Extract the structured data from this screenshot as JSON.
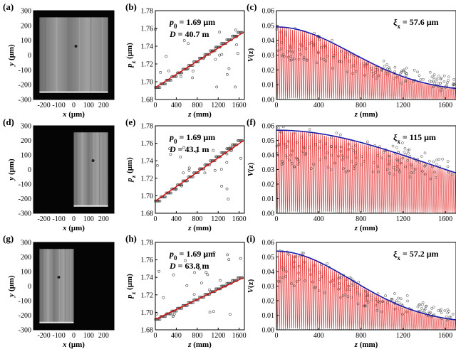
{
  "colors": {
    "fit_line": "#e00000",
    "envelope": "#1a1aa8",
    "data_marker": "#444444",
    "fringe": "#e02020"
  },
  "chart_data": [
    {
      "id": "a",
      "type": "heatmap",
      "panel_label": "(a)",
      "xlabel_var": "x",
      "xlabel_unit": " (μm)",
      "ylabel_var": "y",
      "ylabel_unit": " (μm)",
      "xlim": [
        -270,
        270
      ],
      "ylim": [
        -300,
        300
      ],
      "xticks": [
        "-200",
        "-100",
        "0",
        "100",
        "200"
      ],
      "yticks": [
        "300",
        "200",
        "100",
        "0",
        "-100",
        "-200",
        "-300"
      ],
      "bright_region": [
        -230,
        230
      ],
      "bright_y": [
        -250,
        255
      ]
    },
    {
      "id": "b",
      "type": "scatter",
      "panel_label": "(b)",
      "xlabel_var": "z",
      "xlabel_unit": " (mm)",
      "ylabel_var": "p",
      "ylabel_sub": "z",
      "ylabel_unit": " (μm)",
      "xlim": [
        0,
        1700
      ],
      "ylim": [
        1.68,
        1.78
      ],
      "xticks": [
        "0",
        "400",
        "800",
        "1200",
        "1600"
      ],
      "yticks": [
        "1.78",
        "1.76",
        "1.74",
        "1.72",
        "1.70",
        "1.68"
      ],
      "anno1_var": "p",
      "anno1_sub": "0",
      "anno1_rest": " = 1.69 μm",
      "anno2_var": "D",
      "anno2_rest": " = 40.7 m",
      "fit_line": {
        "x": [
          0,
          1680
        ],
        "y": [
          1.6935,
          1.7555
        ]
      },
      "data_y_range": [
        1.69,
        1.765
      ]
    },
    {
      "id": "c",
      "type": "line",
      "panel_label": "(c)",
      "xlabel_var": "z",
      "xlabel_unit": " (mm)",
      "ylabel_var": "V",
      "ylabel_unit": "(z)",
      "xlim": [
        0,
        1700
      ],
      "ylim": [
        0,
        0.06
      ],
      "xticks": [
        "0",
        "400",
        "800",
        "1200",
        "1600"
      ],
      "yticks": [
        "0.06",
        "0.05",
        "0.04",
        "0.03",
        "0.02",
        "0.01",
        "0.00"
      ],
      "anno_var": "ξ",
      "anno_sub": "x",
      "anno_rest": " = 57.6 μm",
      "envelope": {
        "peak": 0.049,
        "coherence_mm": 1000,
        "floor": 0.005
      }
    },
    {
      "id": "d",
      "type": "heatmap",
      "panel_label": "(d)",
      "xlabel_var": "x",
      "xlabel_unit": " (μm)",
      "ylabel_var": "y",
      "ylabel_unit": " (μm)",
      "xlim": [
        -270,
        270
      ],
      "ylim": [
        -300,
        300
      ],
      "xticks": [
        "-200",
        "-100",
        "0",
        "100",
        "200"
      ],
      "yticks": [
        "300",
        "200",
        "100",
        "0",
        "-100",
        "-200",
        "-300"
      ],
      "bright_region": [
        0,
        230
      ],
      "bright_y": [
        -250,
        255
      ]
    },
    {
      "id": "e",
      "type": "scatter",
      "panel_label": "(e)",
      "xlabel_var": "z",
      "xlabel_unit": " (mm)",
      "ylabel_var": "p",
      "ylabel_sub": "z",
      "ylabel_unit": " (μm)",
      "xlim": [
        0,
        1700
      ],
      "ylim": [
        1.68,
        1.78
      ],
      "xticks": [
        "0",
        "400",
        "800",
        "1200",
        "1600"
      ],
      "yticks": [
        "1.78",
        "1.76",
        "1.74",
        "1.72",
        "1.70",
        "1.68"
      ],
      "anno1_var": "p",
      "anno1_sub": "0",
      "anno1_rest": " = 1.69 μm",
      "anno2_var": "D",
      "anno2_rest": " = 43.1 m",
      "fit_line": {
        "x": [
          0,
          1680
        ],
        "y": [
          1.694,
          1.763
        ]
      },
      "data_y_range": [
        1.693,
        1.765
      ]
    },
    {
      "id": "f",
      "type": "line",
      "panel_label": "(f)",
      "xlabel_var": "z",
      "xlabel_unit": " (mm)",
      "ylabel_var": "V",
      "ylabel_unit": "(z)",
      "xlim": [
        0,
        1700
      ],
      "ylim": [
        0,
        0.06
      ],
      "xticks": [
        "0",
        "400",
        "800",
        "1200",
        "1600"
      ],
      "yticks": [
        "0.06",
        "0.05",
        "0.04",
        "0.03",
        "0.02",
        "0.01",
        "0.00"
      ],
      "anno_var": "ξ",
      "anno_sub": "x",
      "anno_rest": " = 115 μm",
      "envelope": {
        "peak": 0.057,
        "coherence_mm": 2000,
        "floor": 0.0
      }
    },
    {
      "id": "g",
      "type": "heatmap",
      "panel_label": "(g)",
      "xlabel_var": "x",
      "xlabel_unit": " (μm)",
      "ylabel_var": "y",
      "ylabel_unit": " (μm)",
      "xlim": [
        -270,
        270
      ],
      "ylim": [
        -300,
        300
      ],
      "xticks": [
        "-200",
        "-100",
        "0",
        "100",
        "200"
      ],
      "yticks": [
        "300",
        "200",
        "100",
        "0",
        "-100",
        "-200",
        "-300"
      ],
      "bright_region": [
        -230,
        0
      ],
      "bright_y": [
        -250,
        255
      ]
    },
    {
      "id": "h",
      "type": "scatter",
      "panel_label": "(h)",
      "xlabel_var": "z",
      "xlabel_unit": " (mm)",
      "ylabel_var": "p",
      "ylabel_sub": "z",
      "ylabel_unit": " (μm)",
      "xlim": [
        0,
        1700
      ],
      "ylim": [
        1.68,
        1.78
      ],
      "xticks": [
        "0",
        "400",
        "800",
        "1200",
        "1600"
      ],
      "yticks": [
        "1.78",
        "1.76",
        "1.74",
        "1.72",
        "1.70",
        "1.68"
      ],
      "anno1_var": "p",
      "anno1_sub": "0",
      "anno1_rest": " = 1.69 μm",
      "anno2_var": "D",
      "anno2_rest": " = 63.8 m",
      "fit_line": {
        "x": [
          0,
          1680
        ],
        "y": [
          1.692,
          1.7395
        ]
      },
      "data_y_range": [
        1.695,
        1.77
      ]
    },
    {
      "id": "i",
      "type": "line",
      "panel_label": "(i)",
      "xlabel_var": "z",
      "xlabel_unit": " (mm)",
      "ylabel_var": "V",
      "ylabel_unit": "(z)",
      "xlim": [
        0,
        1700
      ],
      "ylim": [
        0,
        0.06
      ],
      "xticks": [
        "0",
        "400",
        "800",
        "1200",
        "1600"
      ],
      "yticks": [
        "0.06",
        "0.05",
        "0.04",
        "0.03",
        "0.02",
        "0.01",
        "0.00"
      ],
      "anno_var": "ξ",
      "anno_sub": "x",
      "anno_rest": " = 57.2 μm",
      "envelope": {
        "peak": 0.054,
        "coherence_mm": 1000,
        "floor": 0.004
      }
    }
  ]
}
